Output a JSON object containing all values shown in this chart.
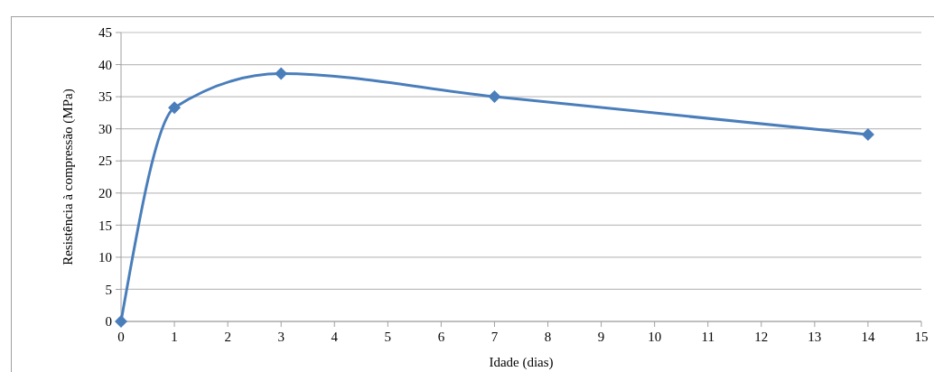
{
  "chart_data": {
    "type": "line",
    "xlabel": "Idade (dias)",
    "ylabel": "Resistência à compressão (MPa)",
    "x": [
      0,
      1,
      3,
      7,
      14
    ],
    "series": [
      {
        "color": "#4a7ebb",
        "values": [
          0,
          33.3,
          38.6,
          35,
          29.1
        ]
      }
    ],
    "xlim": [
      0,
      15
    ],
    "xticks": [
      0,
      1,
      2,
      3,
      4,
      5,
      6,
      7,
      8,
      9,
      10,
      11,
      12,
      13,
      14,
      15
    ],
    "ylim": [
      0,
      45
    ],
    "yticks": [
      0,
      5,
      10,
      15,
      20,
      25,
      30,
      35,
      40,
      45
    ],
    "grid": "y",
    "marker": "diamond",
    "line_style": "solid"
  }
}
